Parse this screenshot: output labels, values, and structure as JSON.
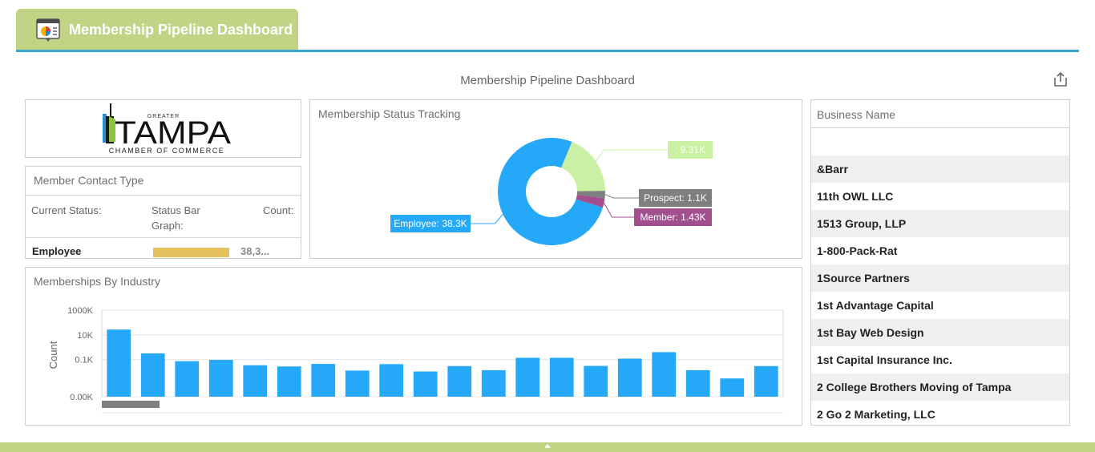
{
  "header": {
    "tab_title": "Membership Pipeline Dashboard",
    "accent": "#c1d385",
    "rule_color": "#3aa6d0"
  },
  "dashboard": {
    "title": "Membership Pipeline Dashboard",
    "export_icon": "share-export-icon"
  },
  "logo": {
    "greater": "GREATER",
    "name": "TAMPA",
    "subtitle": "CHAMBER OF COMMERCE"
  },
  "member_contact": {
    "title": "Member Contact Type",
    "columns": [
      "Current Status:",
      "Status Bar Graph:",
      "Count:"
    ],
    "rows": [
      {
        "status": "Employee",
        "count": "38,3..."
      }
    ]
  },
  "status_tracking": {
    "title": "Membership Status Tracking",
    "chart_data": {
      "type": "pie",
      "donut": true,
      "slices": [
        {
          "label": "Employee: 38.3K",
          "value": 38300,
          "color": "#24a8f7"
        },
        {
          "label": ": 9.31K",
          "value": 9310,
          "color": "#c9f0a3"
        },
        {
          "label": "Prospect: 1.1K",
          "value": 1100,
          "color": "#7f7f7f"
        },
        {
          "label": "Member: 1.43K",
          "value": 1430,
          "color": "#a14f8f"
        }
      ]
    }
  },
  "industry": {
    "title": "Memberships By Industry",
    "chart_data": {
      "type": "bar",
      "ylabel": "Count",
      "yscale": "log",
      "yticks": [
        "1000K",
        "10K",
        "0.1K",
        "0.00K"
      ],
      "color": "#24a8f7",
      "values": [
        27000,
        320,
        75,
        95,
        35,
        28,
        45,
        13,
        43,
        11,
        30,
        14,
        140,
        140,
        31,
        120,
        400,
        14,
        3,
        30
      ]
    }
  },
  "business": {
    "title": "Business Name",
    "items": [
      "",
      "&Barr",
      "11th OWL LLC",
      "1513 Group, LLP",
      "1-800-Pack-Rat",
      "1Source Partners",
      "1st Advantage Capital",
      "1st Bay Web Design",
      "1st Capital Insurance Inc.",
      "2 College Brothers Moving of Tampa",
      "2 Go 2 Marketing, LLC"
    ]
  }
}
